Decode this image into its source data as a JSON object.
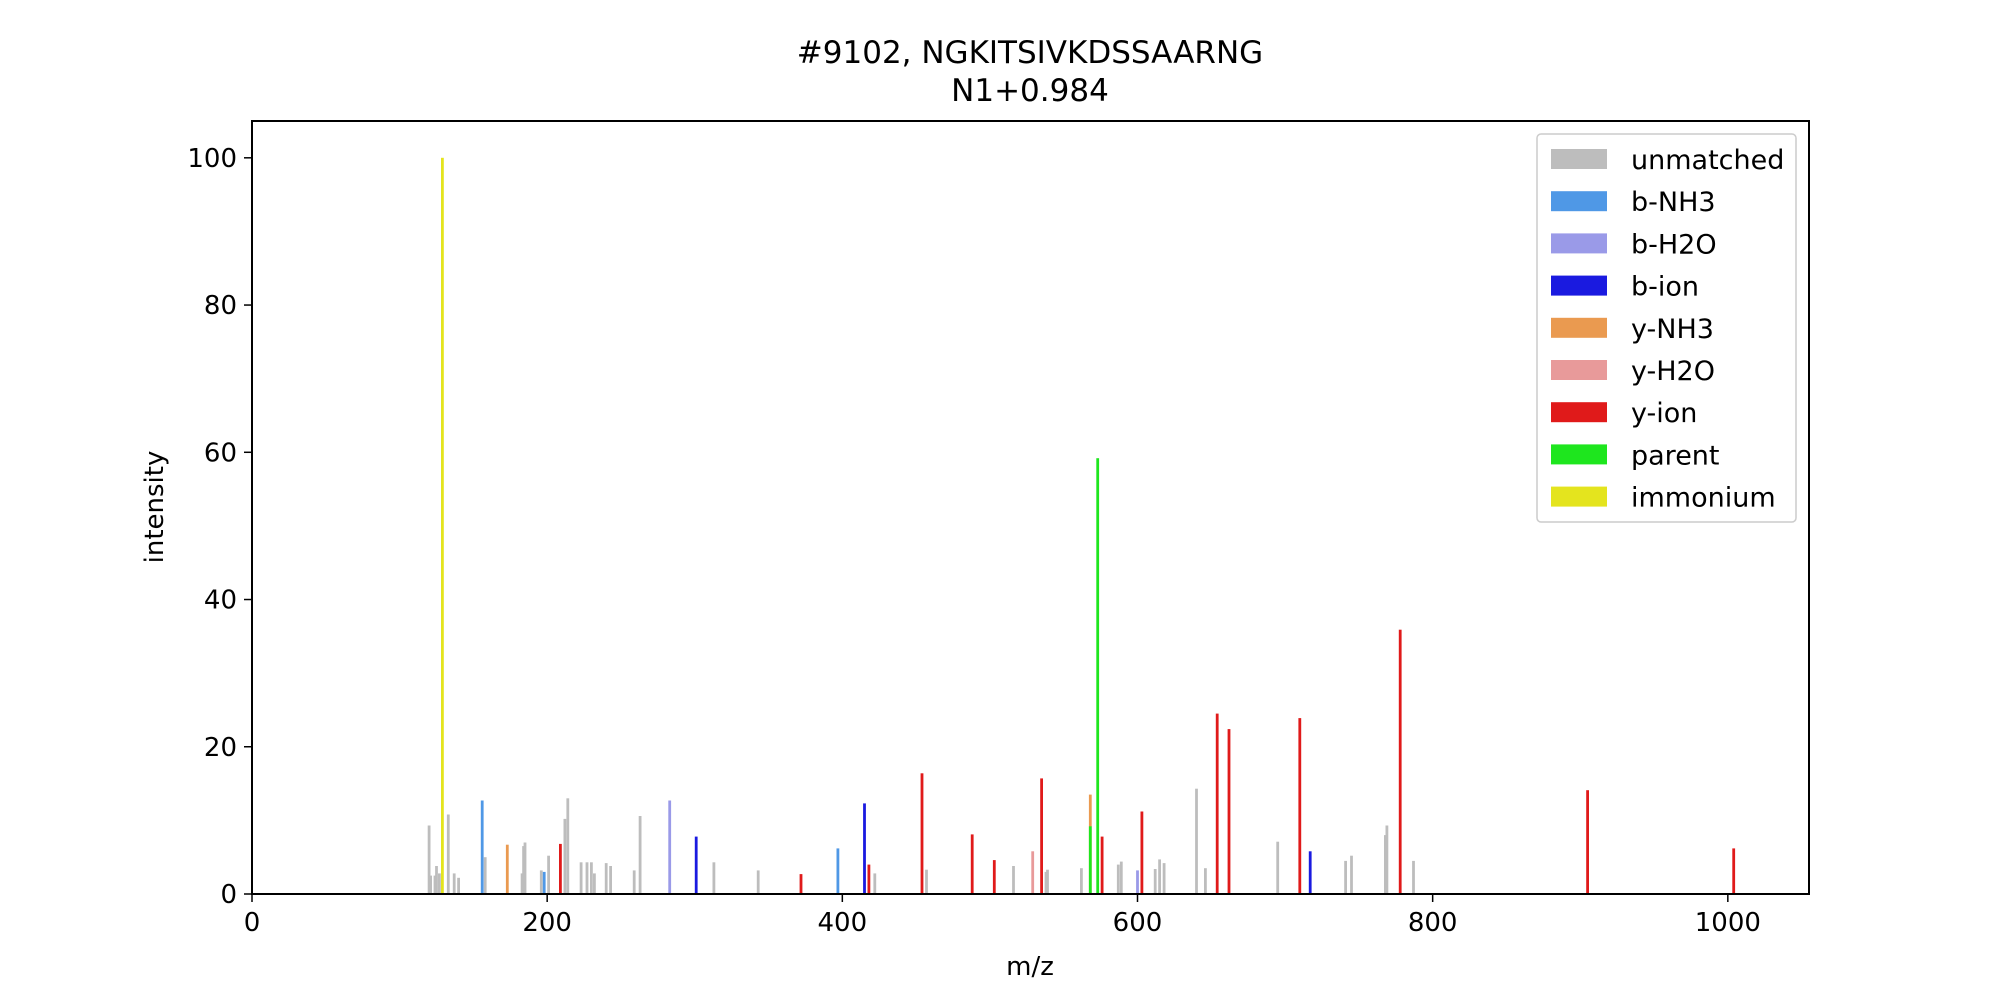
{
  "chart_data": {
    "type": "bar",
    "title": "#9102, NGKITSIVKDSSAARNG",
    "subtitle": "N1+0.984",
    "xlabel": "m/z",
    "ylabel": "intensity",
    "xlim": [
      0,
      1055
    ],
    "ylim": [
      0,
      105
    ],
    "xticks": [
      0,
      200,
      400,
      600,
      800,
      1000
    ],
    "yticks": [
      0,
      20,
      40,
      60,
      80,
      100
    ],
    "grid": false,
    "legend_position": "top-right",
    "colors": {
      "unmatched": "#bdbdbd",
      "b-NH3": "#4f98e6",
      "b-H2O": "#9a9ae8",
      "b-ion": "#1a1ae0",
      "y-NH3": "#ea9a50",
      "y-H2O": "#e89a9a",
      "y-ion": "#e01a1a",
      "parent": "#1ee61e",
      "immonium": "#e4e41e"
    },
    "series": [
      {
        "name": "unmatched",
        "points": [
          [
            120,
            9.3
          ],
          [
            121,
            2.5
          ],
          [
            124,
            2.5
          ],
          [
            125,
            3.8
          ],
          [
            127,
            2.8
          ],
          [
            133,
            10.8
          ],
          [
            137,
            2.8
          ],
          [
            140,
            2.2
          ],
          [
            158,
            5.0
          ],
          [
            183,
            2.8
          ],
          [
            184,
            6.5
          ],
          [
            185,
            7.0
          ],
          [
            196,
            3.2
          ],
          [
            201,
            5.2
          ],
          [
            212,
            10.2
          ],
          [
            214,
            13.0
          ],
          [
            223,
            4.3
          ],
          [
            227,
            4.3
          ],
          [
            230,
            4.3
          ],
          [
            232,
            2.8
          ],
          [
            240,
            4.2
          ],
          [
            243,
            3.8
          ],
          [
            259,
            3.2
          ],
          [
            263,
            10.6
          ],
          [
            313,
            4.3
          ],
          [
            343,
            3.2
          ],
          [
            422,
            2.8
          ],
          [
            457,
            3.3
          ],
          [
            516,
            3.8
          ],
          [
            538,
            3.0
          ],
          [
            539,
            3.3
          ],
          [
            562,
            3.5
          ],
          [
            587,
            4.0
          ],
          [
            589,
            4.4
          ],
          [
            612,
            3.4
          ],
          [
            615,
            4.7
          ],
          [
            618,
            4.2
          ],
          [
            640,
            14.3
          ],
          [
            646,
            3.5
          ],
          [
            695,
            7.1
          ],
          [
            741,
            4.5
          ],
          [
            745,
            5.2
          ],
          [
            768,
            8.0
          ],
          [
            769,
            9.3
          ],
          [
            787,
            4.5
          ]
        ]
      },
      {
        "name": "b-NH3",
        "points": [
          [
            156,
            12.7
          ],
          [
            198,
            3.0
          ],
          [
            397,
            6.2
          ]
        ]
      },
      {
        "name": "b-H2O",
        "points": [
          [
            283,
            12.7
          ],
          [
            600,
            3.2
          ]
        ]
      },
      {
        "name": "b-ion",
        "points": [
          [
            301,
            7.8
          ],
          [
            415,
            12.3
          ],
          [
            717,
            5.8
          ]
        ]
      },
      {
        "name": "y-NH3",
        "points": [
          [
            173,
            6.7
          ],
          [
            568,
            13.5
          ]
        ]
      },
      {
        "name": "y-H2O",
        "points": [
          [
            529,
            5.8
          ]
        ]
      },
      {
        "name": "y-ion",
        "points": [
          [
            209,
            6.8
          ],
          [
            372,
            2.7
          ],
          [
            418,
            4.0
          ],
          [
            454,
            16.4
          ],
          [
            488,
            8.1
          ],
          [
            503,
            4.6
          ],
          [
            535,
            15.7
          ],
          [
            576,
            7.8
          ],
          [
            603,
            11.2
          ],
          [
            654,
            24.5
          ],
          [
            662,
            22.4
          ],
          [
            710,
            23.9
          ],
          [
            778,
            35.9
          ],
          [
            905,
            14.1
          ],
          [
            1004,
            6.2
          ]
        ]
      },
      {
        "name": "parent",
        "points": [
          [
            568,
            9.2
          ],
          [
            573,
            59.2
          ]
        ]
      },
      {
        "name": "immonium",
        "points": [
          [
            129,
            100
          ]
        ]
      }
    ]
  }
}
